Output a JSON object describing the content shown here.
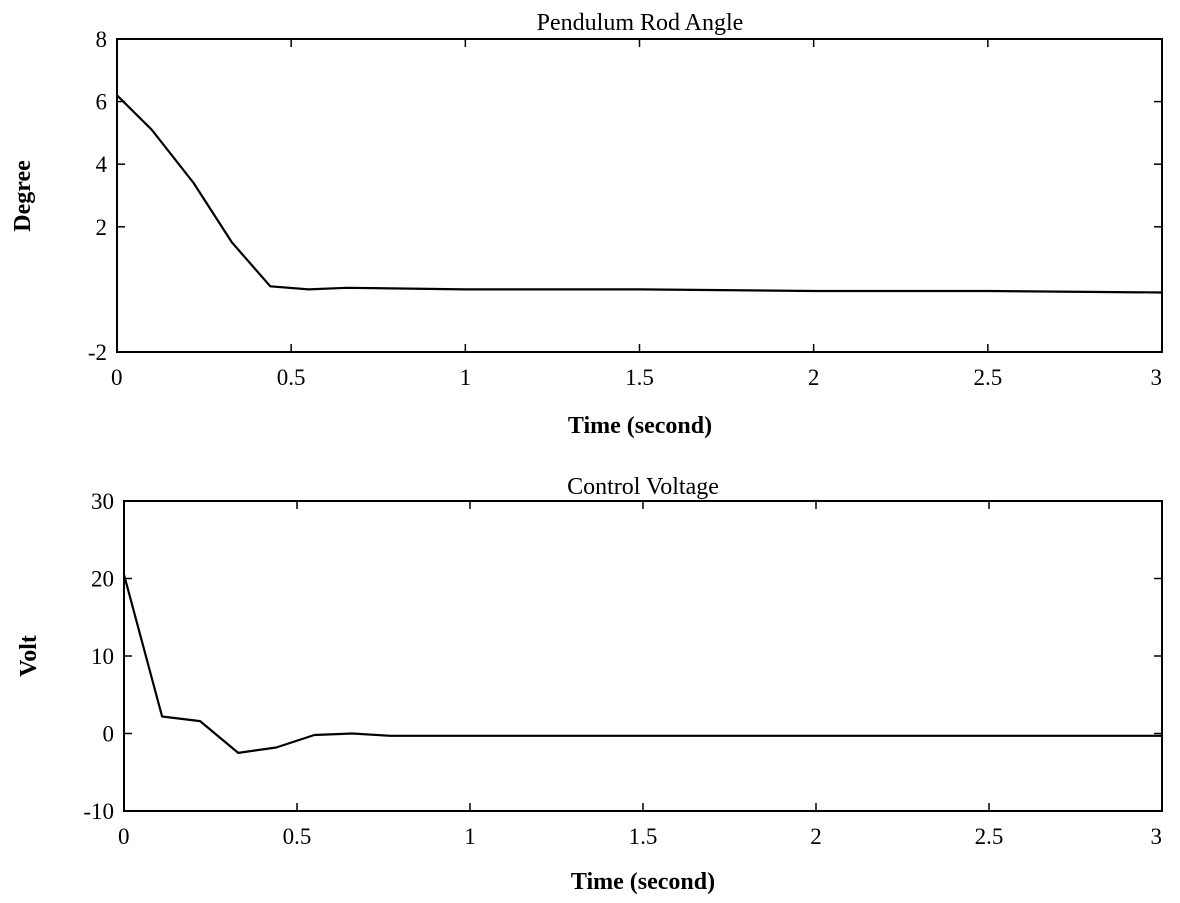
{
  "chart_data": [
    {
      "type": "line",
      "title": "Pendulum Rod Angle",
      "xlabel": "Time (second)",
      "ylabel": "Degree",
      "xlim": [
        0,
        3
      ],
      "ylim": [
        -2,
        8
      ],
      "x_ticks": [
        0,
        0.5,
        1,
        1.5,
        2,
        2.5,
        3
      ],
      "x_tick_labels": [
        "0",
        "0.5",
        "1",
        "1.5",
        "2",
        "2.5",
        "3"
      ],
      "y_ticks": [
        -2,
        2,
        4,
        6,
        8
      ],
      "y_tick_labels": [
        "-2",
        "2",
        "4",
        "6",
        "8"
      ],
      "grid": false,
      "series": [
        {
          "color": "#000000",
          "x": [
            0,
            0.1,
            0.22,
            0.33,
            0.44,
            0.55,
            0.66,
            1.0,
            1.5,
            2.0,
            2.5,
            3.0
          ],
          "y": [
            6.2,
            5.1,
            3.4,
            1.5,
            0.1,
            0.0,
            0.05,
            0.0,
            0.0,
            -0.05,
            -0.05,
            -0.1
          ]
        }
      ]
    },
    {
      "type": "line",
      "title": "Control Voltage",
      "xlabel": "Time (second)",
      "ylabel": "Volt",
      "xlim": [
        0,
        3
      ],
      "ylim": [
        -10,
        30
      ],
      "x_ticks": [
        0,
        0.5,
        1,
        1.5,
        2,
        2.5,
        3
      ],
      "x_tick_labels": [
        "0",
        "0.5",
        "1",
        "1.5",
        "2",
        "2.5",
        "3"
      ],
      "y_ticks": [
        -10,
        0,
        10,
        20,
        30
      ],
      "y_tick_labels": [
        "-10",
        "0",
        "10",
        "20",
        "30"
      ],
      "grid": false,
      "series": [
        {
          "color": "#000000",
          "x": [
            0,
            0.11,
            0.22,
            0.33,
            0.44,
            0.55,
            0.66,
            0.77,
            1.0,
            1.5,
            2.0,
            2.5,
            3.0
          ],
          "y": [
            20.5,
            2.2,
            1.6,
            -2.5,
            -1.8,
            -0.2,
            0.0,
            -0.3,
            -0.3,
            -0.3,
            -0.3,
            -0.3,
            -0.3
          ]
        }
      ]
    }
  ]
}
